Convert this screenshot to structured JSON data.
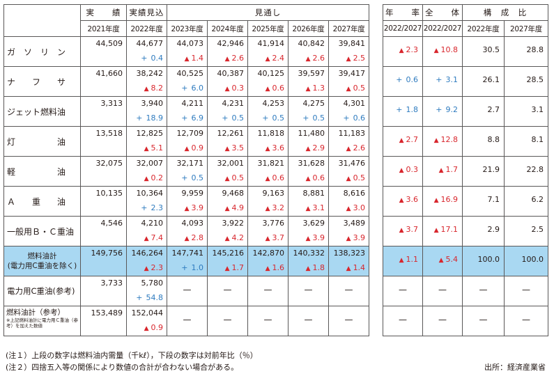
{
  "header": {
    "actual": "実　　績",
    "expected": "実績見込",
    "outlook": "見通し",
    "annual_rate": "年　　率",
    "overall": "全　　体",
    "composition": "構　成　比"
  },
  "years": [
    "2021年度",
    "2022年度",
    "2023年度",
    "2024年度",
    "2025年度",
    "2026年度",
    "2027年度"
  ],
  "side_years": [
    "2022/2027",
    "2022/2027",
    "2022年度",
    "2027年度"
  ],
  "rows": [
    {
      "label": "ガ　ソ　リ　ン",
      "values": [
        "44,509",
        "44,677",
        "44,073",
        "42,946",
        "41,914",
        "40,842",
        "39,841"
      ],
      "changes": [
        null,
        {
          "dir": "up",
          "v": "0.4"
        },
        {
          "dir": "down",
          "v": "1.4"
        },
        {
          "dir": "down",
          "v": "2.6"
        },
        {
          "dir": "down",
          "v": "2.4"
        },
        {
          "dir": "down",
          "v": "2.6"
        },
        {
          "dir": "down",
          "v": "2.5"
        }
      ],
      "rate": {
        "dir": "down",
        "v": "2.3"
      },
      "overall": {
        "dir": "down",
        "v": "10.8"
      },
      "comp2022": "30.5",
      "comp2027": "28.8"
    },
    {
      "label": "ナ　　フ　　サ",
      "values": [
        "41,660",
        "38,242",
        "40,525",
        "40,387",
        "40,125",
        "39,597",
        "39,417"
      ],
      "changes": [
        null,
        {
          "dir": "down",
          "v": "8.2"
        },
        {
          "dir": "up",
          "v": "6.0"
        },
        {
          "dir": "down",
          "v": "0.3"
        },
        {
          "dir": "down",
          "v": "0.6"
        },
        {
          "dir": "down",
          "v": "1.3"
        },
        {
          "dir": "down",
          "v": "0.5"
        }
      ],
      "rate": {
        "dir": "up",
        "v": "0.6"
      },
      "overall": {
        "dir": "up",
        "v": "3.1"
      },
      "comp2022": "26.1",
      "comp2027": "28.5"
    },
    {
      "label": "ジェット燃料油",
      "values": [
        "3,313",
        "3,940",
        "4,211",
        "4,231",
        "4,253",
        "4,275",
        "4,301"
      ],
      "changes": [
        null,
        {
          "dir": "up",
          "v": "18.9"
        },
        {
          "dir": "up",
          "v": "6.9"
        },
        {
          "dir": "up",
          "v": "0.5"
        },
        {
          "dir": "up",
          "v": "0.5"
        },
        {
          "dir": "up",
          "v": "0.5"
        },
        {
          "dir": "up",
          "v": "0.6"
        }
      ],
      "rate": {
        "dir": "up",
        "v": "1.8"
      },
      "overall": {
        "dir": "up",
        "v": "9.2"
      },
      "comp2022": "2.7",
      "comp2027": "3.1"
    },
    {
      "label": "灯　　　　　油",
      "values": [
        "13,518",
        "12,825",
        "12,709",
        "12,261",
        "11,818",
        "11,480",
        "11,183"
      ],
      "changes": [
        null,
        {
          "dir": "down",
          "v": "5.1"
        },
        {
          "dir": "down",
          "v": "0.9"
        },
        {
          "dir": "down",
          "v": "3.5"
        },
        {
          "dir": "down",
          "v": "3.6"
        },
        {
          "dir": "down",
          "v": "2.9"
        },
        {
          "dir": "down",
          "v": "2.6"
        }
      ],
      "rate": {
        "dir": "down",
        "v": "2.7"
      },
      "overall": {
        "dir": "down",
        "v": "12.8"
      },
      "comp2022": "8.8",
      "comp2027": "8.1"
    },
    {
      "label": "軽　　　　　油",
      "values": [
        "32,075",
        "32,007",
        "32,171",
        "32,001",
        "31,821",
        "31,628",
        "31,476"
      ],
      "changes": [
        null,
        {
          "dir": "down",
          "v": "0.2"
        },
        {
          "dir": "up",
          "v": "0.5"
        },
        {
          "dir": "down",
          "v": "0.5"
        },
        {
          "dir": "down",
          "v": "0.6"
        },
        {
          "dir": "down",
          "v": "0.6"
        },
        {
          "dir": "down",
          "v": "0.5"
        }
      ],
      "rate": {
        "dir": "down",
        "v": "0.3"
      },
      "overall": {
        "dir": "down",
        "v": "1.7"
      },
      "comp2022": "21.9",
      "comp2027": "22.8"
    },
    {
      "label": "Ａ　　重　　油",
      "values": [
        "10,135",
        "10,364",
        "9,959",
        "9,468",
        "9,163",
        "8,881",
        "8,616"
      ],
      "changes": [
        null,
        {
          "dir": "up",
          "v": "2.3"
        },
        {
          "dir": "down",
          "v": "3.9"
        },
        {
          "dir": "down",
          "v": "4.9"
        },
        {
          "dir": "down",
          "v": "3.2"
        },
        {
          "dir": "down",
          "v": "3.1"
        },
        {
          "dir": "down",
          "v": "3.0"
        }
      ],
      "rate": {
        "dir": "down",
        "v": "3.6"
      },
      "overall": {
        "dir": "down",
        "v": "16.9"
      },
      "comp2022": "7.1",
      "comp2027": "6.2"
    },
    {
      "label": "一般用Ｂ・Ｃ重油",
      "values": [
        "4,546",
        "4,210",
        "4,093",
        "3,922",
        "3,776",
        "3,629",
        "3,489"
      ],
      "changes": [
        null,
        {
          "dir": "down",
          "v": "7.4"
        },
        {
          "dir": "down",
          "v": "2.8"
        },
        {
          "dir": "down",
          "v": "4.2"
        },
        {
          "dir": "down",
          "v": "3.7"
        },
        {
          "dir": "down",
          "v": "3.9"
        },
        {
          "dir": "down",
          "v": "3.9"
        }
      ],
      "rate": {
        "dir": "down",
        "v": "3.7"
      },
      "overall": {
        "dir": "down",
        "v": "17.1"
      },
      "comp2022": "2.9",
      "comp2027": "2.5"
    }
  ],
  "total_row": {
    "label_line1": "燃料油計",
    "label_line2": "(電力用C重油を除く)",
    "values": [
      "149,756",
      "146,264",
      "147,741",
      "145,216",
      "142,870",
      "140,332",
      "138,323"
    ],
    "changes": [
      null,
      {
        "dir": "down",
        "v": "2.3"
      },
      {
        "dir": "up",
        "v": "1.0"
      },
      {
        "dir": "down",
        "v": "1.7"
      },
      {
        "dir": "down",
        "v": "1.6"
      },
      {
        "dir": "down",
        "v": "1.8"
      },
      {
        "dir": "down",
        "v": "1.4"
      }
    ],
    "rate": {
      "dir": "down",
      "v": "1.1"
    },
    "overall": {
      "dir": "down",
      "v": "5.4"
    },
    "comp2022": "100.0",
    "comp2027": "100.0"
  },
  "power_row": {
    "label": "電力用C重油(参考)",
    "values": [
      "3,733",
      "5,780"
    ],
    "change": {
      "dir": "up",
      "v": "54.8"
    },
    "dash": "—"
  },
  "ref_row": {
    "label": "燃料油計（参考）",
    "label_note": "※上記燃料油計に電力用Ｃ重油（参考）を加えた数値",
    "values": [
      "153,489",
      "152,044"
    ],
    "change": {
      "dir": "down",
      "v": "0.9"
    },
    "dash": "—"
  },
  "notes": [
    "(注１）上段の数字は燃料油内需量（千kℓ），下段の数字は対前年比（％）",
    "(注２）四捨五入等の関係により数値の合計が合わない場合がある。"
  ],
  "source": "出所：経済産業省",
  "colors": {
    "up": "#2e7bbf",
    "down": "#d8262d",
    "highlight": "#a9d8f2"
  }
}
